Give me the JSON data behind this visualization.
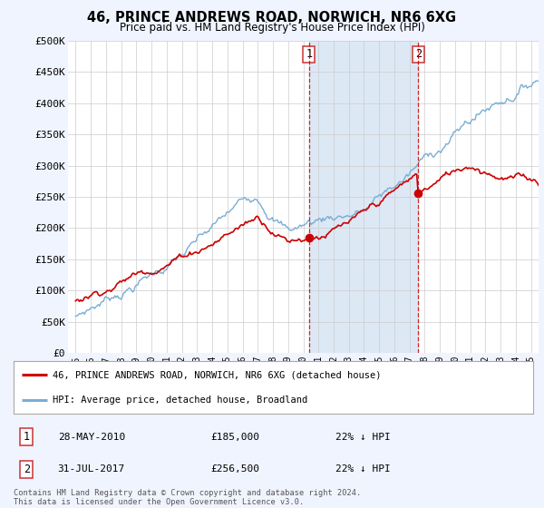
{
  "title": "46, PRINCE ANDREWS ROAD, NORWICH, NR6 6XG",
  "subtitle": "Price paid vs. HM Land Registry's House Price Index (HPI)",
  "legend_house": "46, PRINCE ANDREWS ROAD, NORWICH, NR6 6XG (detached house)",
  "legend_hpi": "HPI: Average price, detached house, Broadland",
  "transaction1_date": "28-MAY-2010",
  "transaction1_price": "£185,000",
  "transaction1_hpi": "22% ↓ HPI",
  "transaction2_date": "31-JUL-2017",
  "transaction2_price": "£256,500",
  "transaction2_hpi": "22% ↓ HPI",
  "footer": "Contains HM Land Registry data © Crown copyright and database right 2024.\nThis data is licensed under the Open Government Licence v3.0.",
  "house_color": "#cc0000",
  "hpi_color": "#7aadd4",
  "shade_color": "#dde8f5",
  "marker1_x": 2010.38,
  "marker2_x": 2017.57,
  "ylim_min": 0,
  "ylim_max": 500000,
  "xlim_min": 1994.5,
  "xlim_max": 2025.5,
  "yticks": [
    0,
    50000,
    100000,
    150000,
    200000,
    250000,
    300000,
    350000,
    400000,
    450000,
    500000
  ],
  "ytick_labels": [
    "£0",
    "£50K",
    "£100K",
    "£150K",
    "£200K",
    "£250K",
    "£300K",
    "£350K",
    "£400K",
    "£450K",
    "£500K"
  ],
  "xticks": [
    1995,
    1996,
    1997,
    1998,
    1999,
    2000,
    2001,
    2002,
    2003,
    2004,
    2005,
    2006,
    2007,
    2008,
    2009,
    2010,
    2011,
    2012,
    2013,
    2014,
    2015,
    2016,
    2017,
    2018,
    2019,
    2020,
    2021,
    2022,
    2023,
    2024,
    2025
  ],
  "background_color": "#f0f4ff",
  "plot_bg_color": "#ffffff"
}
